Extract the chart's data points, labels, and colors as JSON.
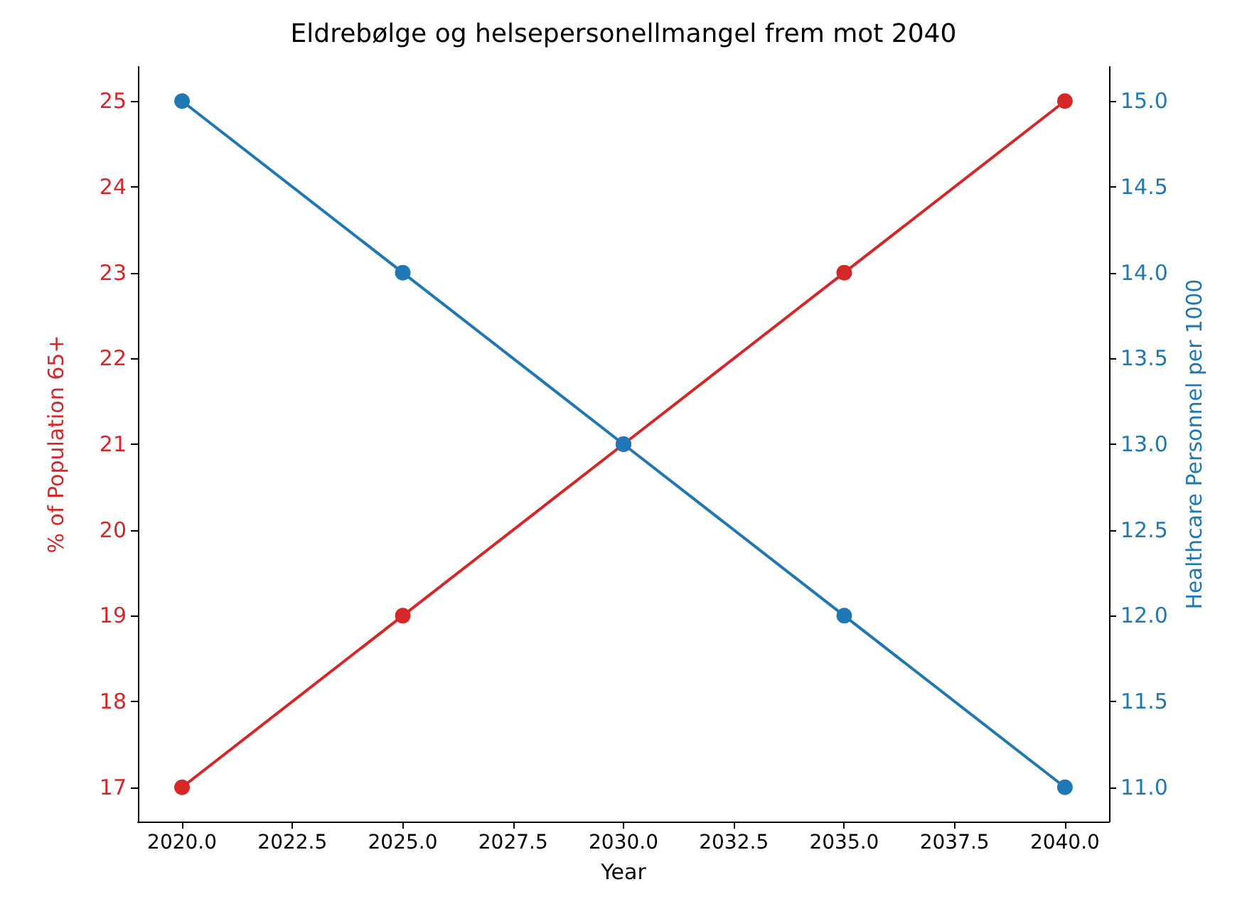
{
  "chart_data": {
    "type": "line",
    "title": "Eldrebølge og helsepersonellmangel frem mot 2040",
    "xlabel": "Year",
    "ylabel": "% of Population 65+",
    "y2label": "Healthcare Personnel per 1000",
    "x": [
      2020,
      2025,
      2030,
      2035,
      2040
    ],
    "series": [
      {
        "color": "#d62728",
        "values": [
          17,
          19,
          21,
          23,
          25
        ]
      },
      {
        "color": "#1f77b4",
        "values": [
          15,
          14,
          13,
          12,
          11
        ],
        "axis": "y2"
      }
    ],
    "xlim": [
      2019,
      2041
    ],
    "xticks": [
      {
        "value": 2020,
        "label": "2020.0"
      },
      {
        "value": 2022.5,
        "label": "2022.5"
      },
      {
        "value": 2025,
        "label": "2025.0"
      },
      {
        "value": 2027.5,
        "label": "2027.5"
      },
      {
        "value": 2030,
        "label": "2030.0"
      },
      {
        "value": 2032.5,
        "label": "2032.5"
      },
      {
        "value": 2035,
        "label": "2035.0"
      },
      {
        "value": 2037.5,
        "label": "2037.5"
      },
      {
        "value": 2040,
        "label": "2040.0"
      }
    ],
    "ylim": [
      16.6,
      25.4
    ],
    "yticks": [
      17,
      18,
      19,
      20,
      21,
      22,
      23,
      24,
      25
    ],
    "y2lim": [
      10.8,
      15.2
    ],
    "y2ticks": [
      {
        "value": 11,
        "label": "11.0"
      },
      {
        "value": 11.5,
        "label": "11.5"
      },
      {
        "value": 12,
        "label": "12.0"
      },
      {
        "value": 12.5,
        "label": "12.5"
      },
      {
        "value": 13,
        "label": "13.0"
      },
      {
        "value": 13.5,
        "label": "13.5"
      },
      {
        "value": 14,
        "label": "14.0"
      },
      {
        "value": 14.5,
        "label": "14.5"
      },
      {
        "value": 15,
        "label": "15.0"
      }
    ],
    "grid": false,
    "marker": "circle",
    "line_style": "solid"
  }
}
